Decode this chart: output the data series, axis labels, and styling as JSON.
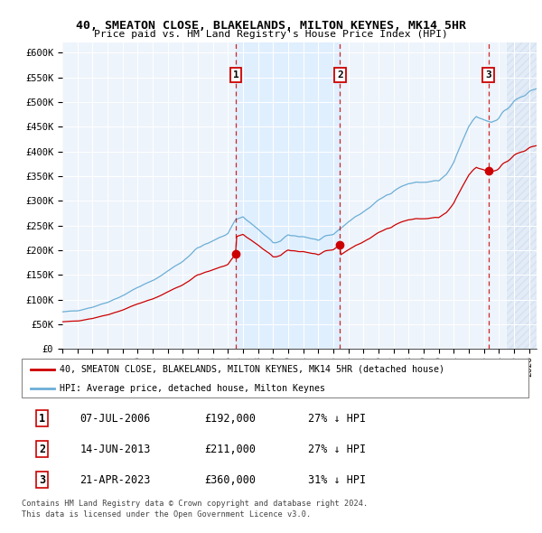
{
  "title1": "40, SMEATON CLOSE, BLAKELANDS, MILTON KEYNES, MK14 5HR",
  "title2": "Price paid vs. HM Land Registry's House Price Index (HPI)",
  "ylabel_ticks": [
    "£0",
    "£50K",
    "£100K",
    "£150K",
    "£200K",
    "£250K",
    "£300K",
    "£350K",
    "£400K",
    "£450K",
    "£500K",
    "£550K",
    "£600K"
  ],
  "ytick_values": [
    0,
    50000,
    100000,
    150000,
    200000,
    250000,
    300000,
    350000,
    400000,
    450000,
    500000,
    550000,
    600000
  ],
  "xmin": 1995.0,
  "xmax": 2026.5,
  "ymin": 0,
  "ymax": 620000,
  "transaction_dates": [
    2006.52,
    2013.45,
    2023.31
  ],
  "transaction_prices": [
    192000,
    211000,
    360000
  ],
  "transaction_labels": [
    "1",
    "2",
    "3"
  ],
  "legend_line1": "40, SMEATON CLOSE, BLAKELANDS, MILTON KEYNES, MK14 5HR (detached house)",
  "legend_line2": "HPI: Average price, detached house, Milton Keynes",
  "table_rows": [
    [
      "1",
      "07-JUL-2006",
      "£192,000",
      "27% ↓ HPI"
    ],
    [
      "2",
      "14-JUN-2013",
      "£211,000",
      "27% ↓ HPI"
    ],
    [
      "3",
      "21-APR-2023",
      "£360,000",
      "31% ↓ HPI"
    ]
  ],
  "footnote1": "Contains HM Land Registry data © Crown copyright and database right 2024.",
  "footnote2": "This data is licensed under the Open Government Licence v3.0.",
  "hpi_color": "#6baed6",
  "price_color": "#cc0000",
  "shaded_region_color": "#ddeeff",
  "hatch_region_color": "#c6d9ee"
}
